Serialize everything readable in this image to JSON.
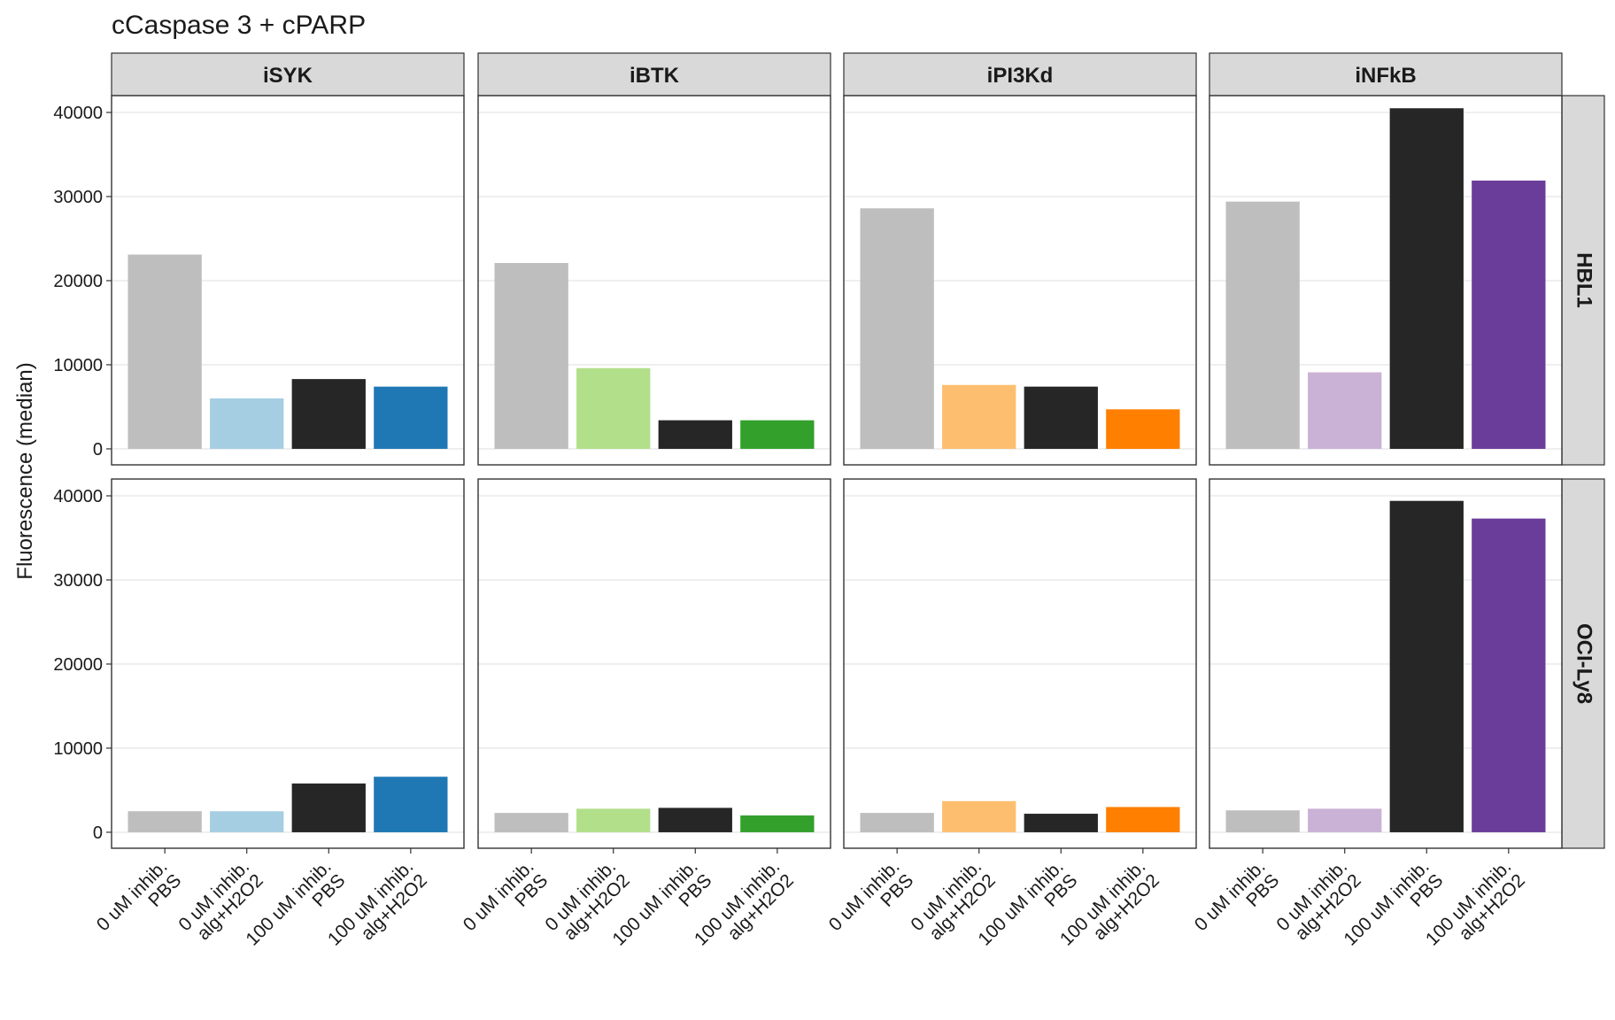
{
  "chart_data": {
    "type": "bar",
    "title": "cCaspase 3 + cPARP",
    "xlabel": "",
    "ylabel": "Fluorescence (median)",
    "ylim": [
      -1900,
      42000
    ],
    "yticks": [
      0,
      10000,
      20000,
      30000,
      40000
    ],
    "grid": true,
    "categories": [
      [
        "0 uM inhib.",
        "PBS"
      ],
      [
        "0 uM inhib.",
        "alg+H2O2"
      ],
      [
        "100 uM inhib.",
        "PBS"
      ],
      [
        "100 uM inhib.",
        "alg+H2O2"
      ]
    ],
    "columns": [
      "iSYK",
      "iBTK",
      "iPI3Kd",
      "iNFkB"
    ],
    "rows": [
      "HBL1",
      "OCI-Ly8"
    ],
    "colors": {
      "iSYK": [
        "#bebebe",
        "#a6cee3",
        "#262626",
        "#1f78b4"
      ],
      "iBTK": [
        "#bebebe",
        "#b2df8a",
        "#262626",
        "#33a02c"
      ],
      "iPI3Kd": [
        "#bebebe",
        "#fdbf6f",
        "#262626",
        "#ff7f00"
      ],
      "iNFkB": [
        "#bebebe",
        "#cab2d6",
        "#262626",
        "#6a3d9a"
      ]
    },
    "panels": [
      {
        "row": "HBL1",
        "column": "iSYK",
        "values": [
          23100,
          6000,
          8300,
          7400
        ]
      },
      {
        "row": "HBL1",
        "column": "iBTK",
        "values": [
          22100,
          9600,
          3400,
          3400
        ]
      },
      {
        "row": "HBL1",
        "column": "iPI3Kd",
        "values": [
          28600,
          7600,
          7400,
          4700
        ]
      },
      {
        "row": "HBL1",
        "column": "iNFkB",
        "values": [
          29400,
          9100,
          40500,
          31900
        ]
      },
      {
        "row": "OCI-Ly8",
        "column": "iSYK",
        "values": [
          2500,
          2500,
          5800,
          6600
        ]
      },
      {
        "row": "OCI-Ly8",
        "column": "iBTK",
        "values": [
          2300,
          2800,
          2900,
          2000
        ]
      },
      {
        "row": "OCI-Ly8",
        "column": "iPI3Kd",
        "values": [
          2300,
          3700,
          2200,
          3000
        ]
      },
      {
        "row": "OCI-Ly8",
        "column": "iNFkB",
        "values": [
          2600,
          2800,
          39400,
          37300
        ]
      }
    ]
  }
}
